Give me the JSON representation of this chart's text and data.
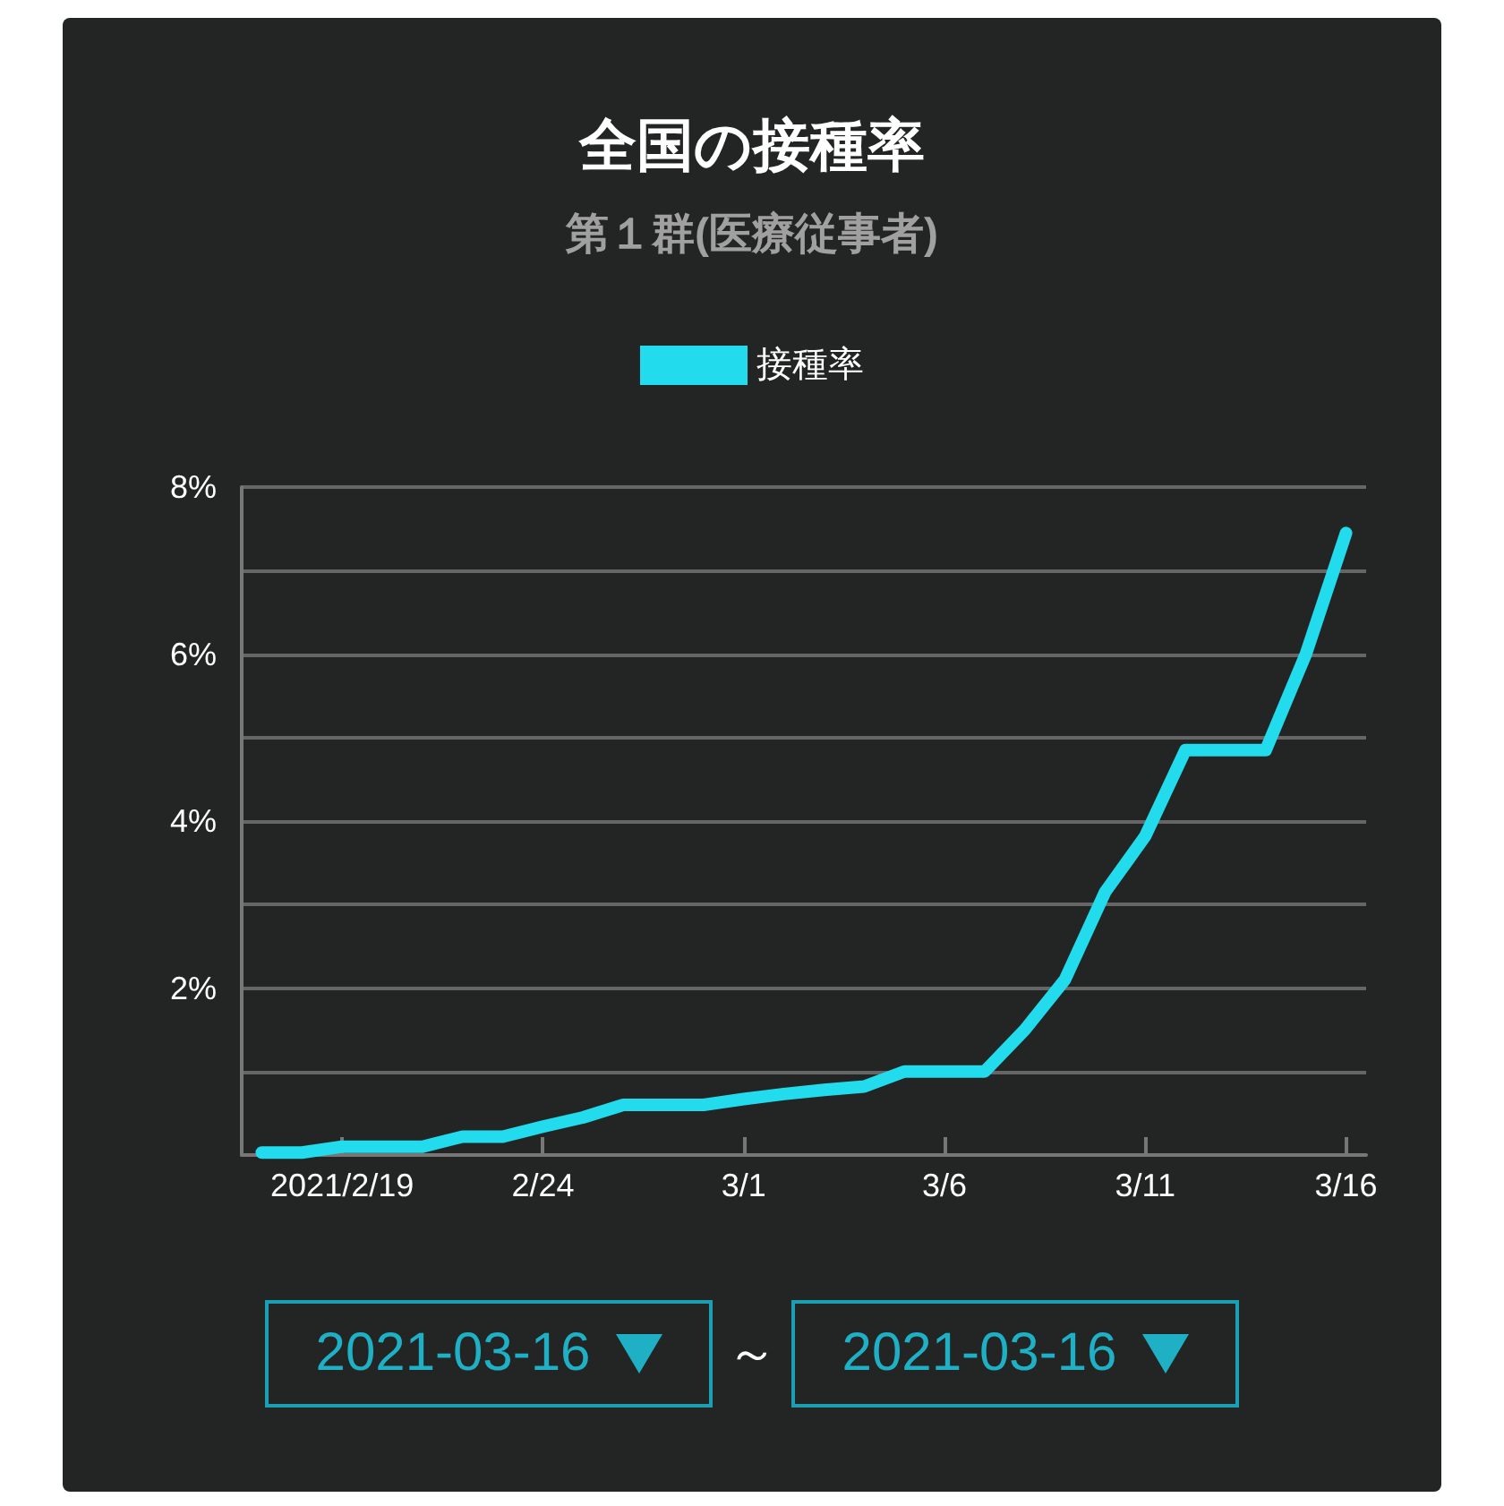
{
  "chart_data": {
    "type": "line",
    "title": "全国の接種率",
    "subtitle": "第１群(医療従事者)",
    "categories": [
      null,
      null,
      "2021/2/19",
      null,
      null,
      null,
      null,
      "2/24",
      null,
      null,
      null,
      null,
      "3/1",
      null,
      null,
      null,
      null,
      "3/6",
      null,
      null,
      null,
      null,
      "3/11",
      null,
      null,
      null,
      null,
      "3/16"
    ],
    "series": [
      {
        "name": "接種率",
        "color": "#22dbec",
        "values": [
          0.03,
          0.03,
          0.1,
          0.1,
          0.1,
          0.22,
          0.22,
          0.34,
          0.45,
          0.6,
          0.6,
          0.6,
          0.67,
          0.73,
          0.78,
          0.82,
          1.0,
          1.0,
          1.0,
          1.5,
          2.1,
          3.15,
          3.82,
          4.85,
          4.85,
          4.85,
          6.0,
          7.45
        ]
      }
    ],
    "ylim": [
      0,
      8
    ],
    "yticks": [
      {
        "value": 0,
        "label": null
      },
      {
        "value": 1,
        "label": null
      },
      {
        "value": 2,
        "label": "2%"
      },
      {
        "value": 3,
        "label": null
      },
      {
        "value": 4,
        "label": "4%"
      },
      {
        "value": 5,
        "label": null
      },
      {
        "value": 6,
        "label": "6%"
      },
      {
        "value": 7,
        "label": null
      },
      {
        "value": 8,
        "label": "8%"
      }
    ],
    "grid": "y",
    "legend": "top",
    "line_style": "solid",
    "annotations": [
      "2021-03-16",
      "～",
      "2021-03-16"
    ]
  }
}
